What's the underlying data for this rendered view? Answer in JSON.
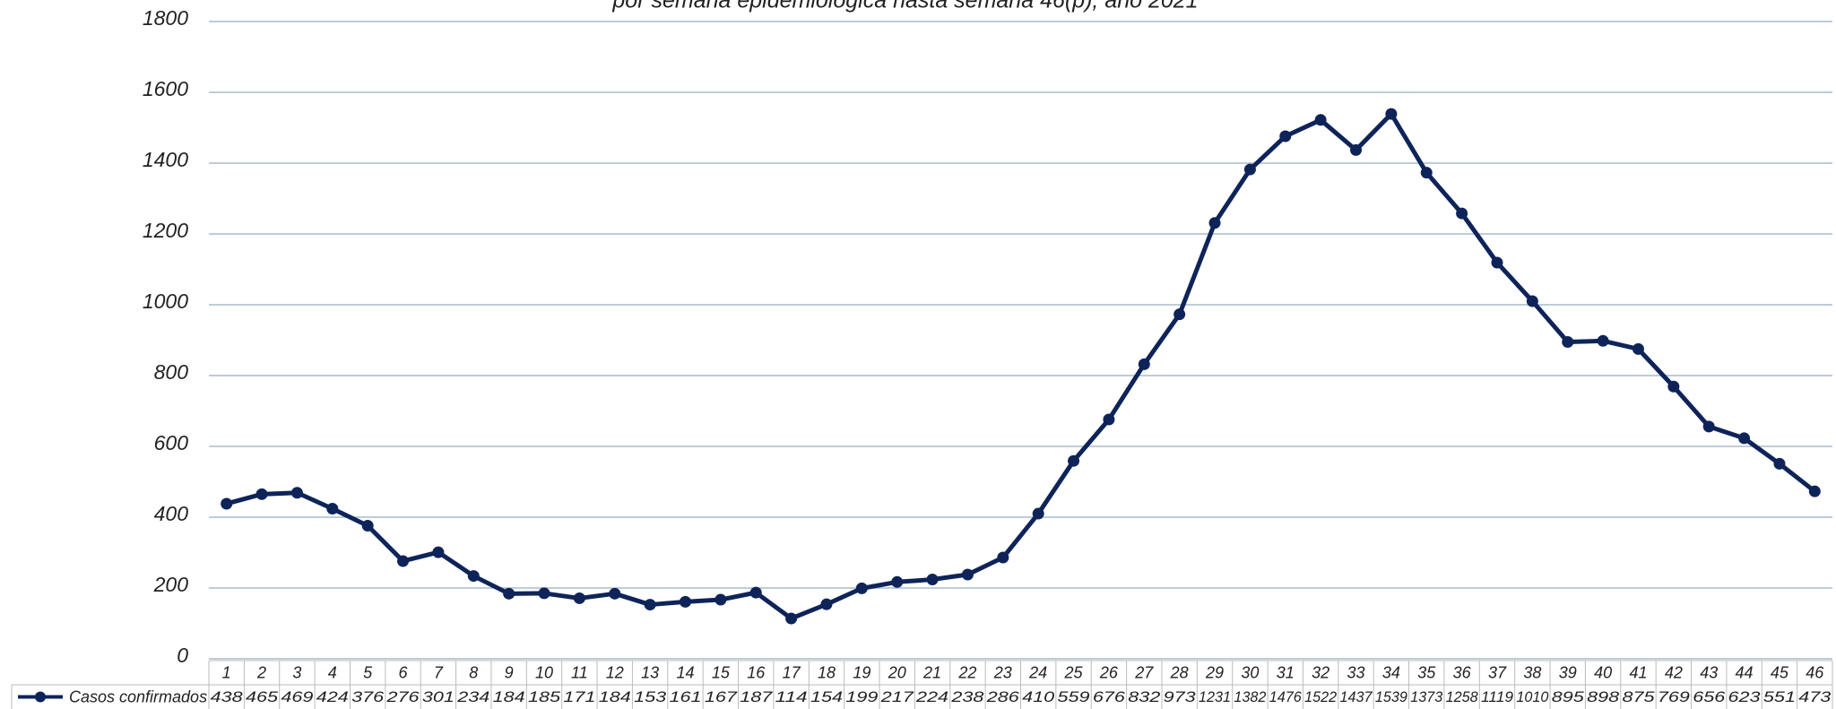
{
  "chart_data": {
    "type": "line",
    "title": "por semana epidemiológica hasta semana 46(p), año 2021",
    "categories": [
      "1",
      "2",
      "3",
      "4",
      "5",
      "6",
      "7",
      "8",
      "9",
      "10",
      "11",
      "12",
      "13",
      "14",
      "15",
      "16",
      "17",
      "18",
      "19",
      "20",
      "21",
      "22",
      "23",
      "24",
      "25",
      "26",
      "27",
      "28",
      "29",
      "30",
      "31",
      "32",
      "33",
      "34",
      "35",
      "36",
      "37",
      "38",
      "39",
      "40",
      "41",
      "42",
      "43",
      "44",
      "45",
      "46"
    ],
    "series": [
      {
        "name": "Casos confirmados",
        "color": "#0e2459",
        "values": [
          438,
          465,
          469,
          424,
          376,
          276,
          301,
          234,
          184,
          185,
          171,
          184,
          153,
          161,
          167,
          187,
          114,
          154,
          199,
          217,
          224,
          238,
          286,
          410,
          559,
          676,
          832,
          973,
          1231,
          1382,
          1476,
          1522,
          1437,
          1539,
          1373,
          1258,
          1119,
          1010,
          895,
          898,
          875,
          769,
          656,
          623,
          551,
          473
        ]
      }
    ],
    "ylim": [
      0,
      1800
    ],
    "yticks": [
      0,
      200,
      400,
      600,
      800,
      1000,
      1200,
      1400,
      1600,
      1800
    ],
    "grid": true,
    "data_table": true
  }
}
